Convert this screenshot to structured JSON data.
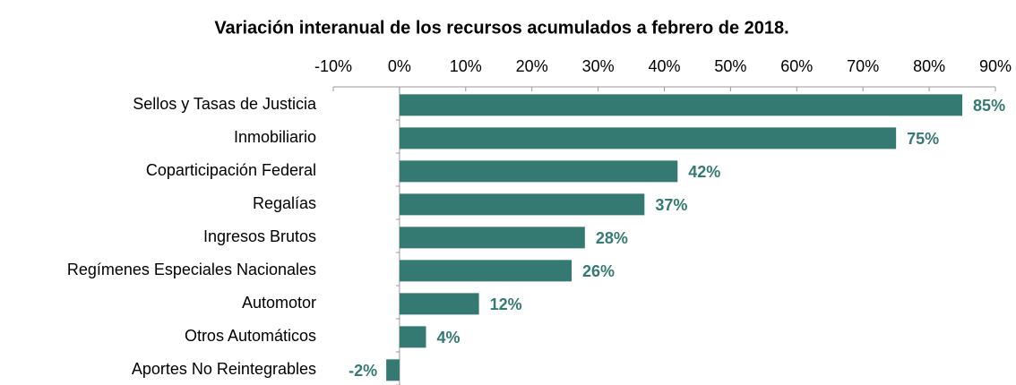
{
  "chart_data": {
    "type": "bar",
    "orientation": "horizontal",
    "title": "Variación interanual de los recursos acumulados a febrero de 2018.",
    "categories": [
      "Sellos y Tasas de Justicia",
      "Inmobiliario",
      "Coparticipación Federal",
      "Regalías",
      "Ingresos Brutos",
      "Regímenes Especiales Nacionales",
      "Automotor",
      "Otros Automáticos",
      "Aportes No Reintegrables"
    ],
    "values": [
      85,
      75,
      42,
      37,
      28,
      26,
      12,
      4,
      -2
    ],
    "value_labels": [
      "85%",
      "75%",
      "42%",
      "37%",
      "28%",
      "26%",
      "12%",
      "4%",
      "-2%"
    ],
    "color": "#357a72",
    "xlim": [
      -10,
      90
    ],
    "xticks": [
      {
        "value": -10,
        "label": "-10%"
      },
      {
        "value": 0,
        "label": "0%"
      },
      {
        "value": 10,
        "label": "10%"
      },
      {
        "value": 20,
        "label": "20%"
      },
      {
        "value": 30,
        "label": "30%"
      },
      {
        "value": 40,
        "label": "40%"
      },
      {
        "value": 50,
        "label": "50%"
      },
      {
        "value": 60,
        "label": "60%"
      },
      {
        "value": 70,
        "label": "70%"
      },
      {
        "value": 80,
        "label": "80%"
      },
      {
        "value": 90,
        "label": "90%"
      }
    ],
    "grid": false
  }
}
